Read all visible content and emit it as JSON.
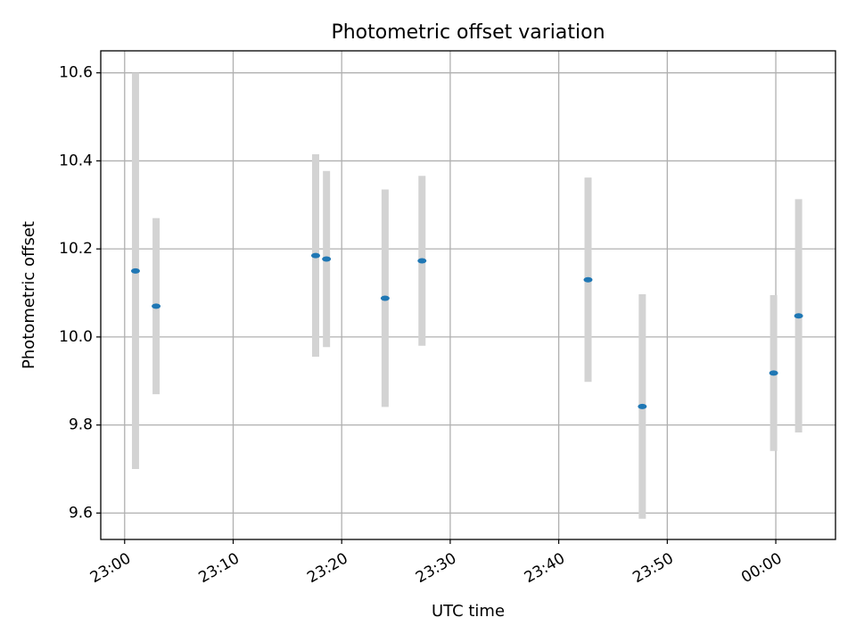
{
  "chart_data": {
    "type": "scatter",
    "title": "Photometric offset variation",
    "xlabel": "UTC time",
    "ylabel": "Photometric offset",
    "x_unit": "minutes",
    "x_ticks": [
      {
        "value": 0,
        "label": "23:00"
      },
      {
        "value": 10,
        "label": "23:10"
      },
      {
        "value": 20,
        "label": "23:20"
      },
      {
        "value": 30,
        "label": "23:30"
      },
      {
        "value": 40,
        "label": "23:40"
      },
      {
        "value": 50,
        "label": "23:50"
      },
      {
        "value": 60,
        "label": "00:00"
      }
    ],
    "y_ticks": [
      {
        "value": 9.6,
        "label": "9.6"
      },
      {
        "value": 9.8,
        "label": "9.8"
      },
      {
        "value": 10.0,
        "label": "10.0"
      },
      {
        "value": 10.2,
        "label": "10.2"
      },
      {
        "value": 10.4,
        "label": "10.4"
      },
      {
        "value": 10.6,
        "label": "10.6"
      }
    ],
    "xlim": [
      -2.2,
      65.5
    ],
    "ylim": [
      9.54,
      10.65
    ],
    "grid": true,
    "points": [
      {
        "x": 1.0,
        "x_label": "23:01",
        "y": 10.15,
        "yerr": 0.45
      },
      {
        "x": 2.9,
        "x_label": "23:03",
        "y": 10.07,
        "yerr": 0.2
      },
      {
        "x": 17.6,
        "x_label": "23:18",
        "y": 10.185,
        "yerr": 0.23
      },
      {
        "x": 18.6,
        "x_label": "23:19",
        "y": 10.177,
        "yerr": 0.2
      },
      {
        "x": 24.0,
        "x_label": "23:24",
        "y": 10.088,
        "yerr": 0.247
      },
      {
        "x": 27.4,
        "x_label": "23:27",
        "y": 10.173,
        "yerr": 0.193
      },
      {
        "x": 42.7,
        "x_label": "23:43",
        "y": 10.13,
        "yerr": 0.232
      },
      {
        "x": 47.7,
        "x_label": "23:48",
        "y": 9.842,
        "yerr": 0.255
      },
      {
        "x": 59.8,
        "x_label": "23:59",
        "y": 9.918,
        "yerr": 0.177
      },
      {
        "x": 62.1,
        "x_label": "00:02",
        "y": 10.048,
        "yerr": 0.265
      }
    ],
    "marker_color": "#1f77b4",
    "errorbar_color": "#d3d3d3",
    "grid_color": "#b0b0b0"
  }
}
